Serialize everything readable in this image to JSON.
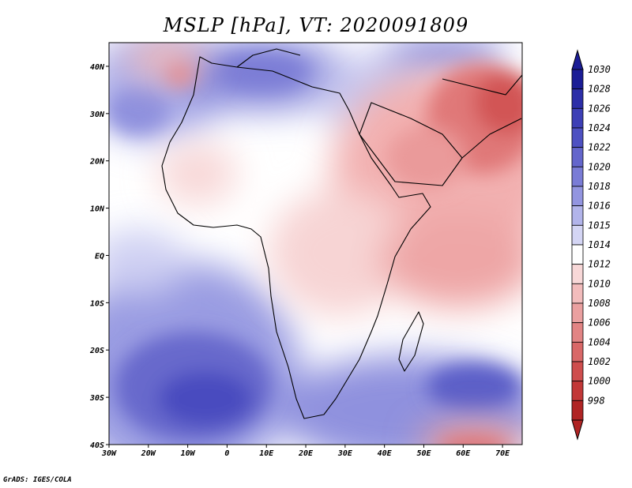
{
  "title": "MSLP [hPa], VT: 2020091809",
  "credit": "GrADS: IGES/COLA",
  "map": {
    "lon_range": [
      -30,
      75
    ],
    "lat_range": [
      -40,
      45
    ],
    "lon_ticks": [
      {
        "value": -30,
        "label": "30W"
      },
      {
        "value": -20,
        "label": "20W"
      },
      {
        "value": -10,
        "label": "10W"
      },
      {
        "value": 0,
        "label": "0"
      },
      {
        "value": 10,
        "label": "10E"
      },
      {
        "value": 20,
        "label": "20E"
      },
      {
        "value": 30,
        "label": "30E"
      },
      {
        "value": 40,
        "label": "40E"
      },
      {
        "value": 50,
        "label": "50E"
      },
      {
        "value": 60,
        "label": "60E"
      },
      {
        "value": 70,
        "label": "70E"
      }
    ],
    "lat_ticks": [
      {
        "value": 40,
        "label": "40N"
      },
      {
        "value": 30,
        "label": "30N"
      },
      {
        "value": 20,
        "label": "20N"
      },
      {
        "value": 10,
        "label": "10N"
      },
      {
        "value": 0,
        "label": "EQ"
      },
      {
        "value": -10,
        "label": "10S"
      },
      {
        "value": -20,
        "label": "20S"
      },
      {
        "value": -30,
        "label": "30S"
      },
      {
        "value": -40,
        "label": "40S"
      }
    ]
  },
  "colorbar": {
    "levels": [
      {
        "label": "1030",
        "color": "#1b1d96"
      },
      {
        "label": "1028",
        "color": "#2c2ea8"
      },
      {
        "label": "1026",
        "color": "#3d3fb6"
      },
      {
        "label": "1024",
        "color": "#4e51c2"
      },
      {
        "label": "1022",
        "color": "#6466cc"
      },
      {
        "label": "1020",
        "color": "#7a7cd6"
      },
      {
        "label": "1018",
        "color": "#9395e0"
      },
      {
        "label": "1016",
        "color": "#b2b4ea"
      },
      {
        "label": "1015",
        "color": "#d4d5f4"
      },
      {
        "label": "1014",
        "color": "#ffffff"
      },
      {
        "label": "1012",
        "color": "#f8d8d8"
      },
      {
        "label": "1010",
        "color": "#f2bcbc"
      },
      {
        "label": "1008",
        "color": "#eaa0a0"
      },
      {
        "label": "1006",
        "color": "#e28484"
      },
      {
        "label": "1004",
        "color": "#d96868"
      },
      {
        "label": "1002",
        "color": "#cf4e4e"
      },
      {
        "label": "1000",
        "color": "#c23838"
      },
      {
        "label": "998",
        "color": "#b02424"
      }
    ]
  }
}
